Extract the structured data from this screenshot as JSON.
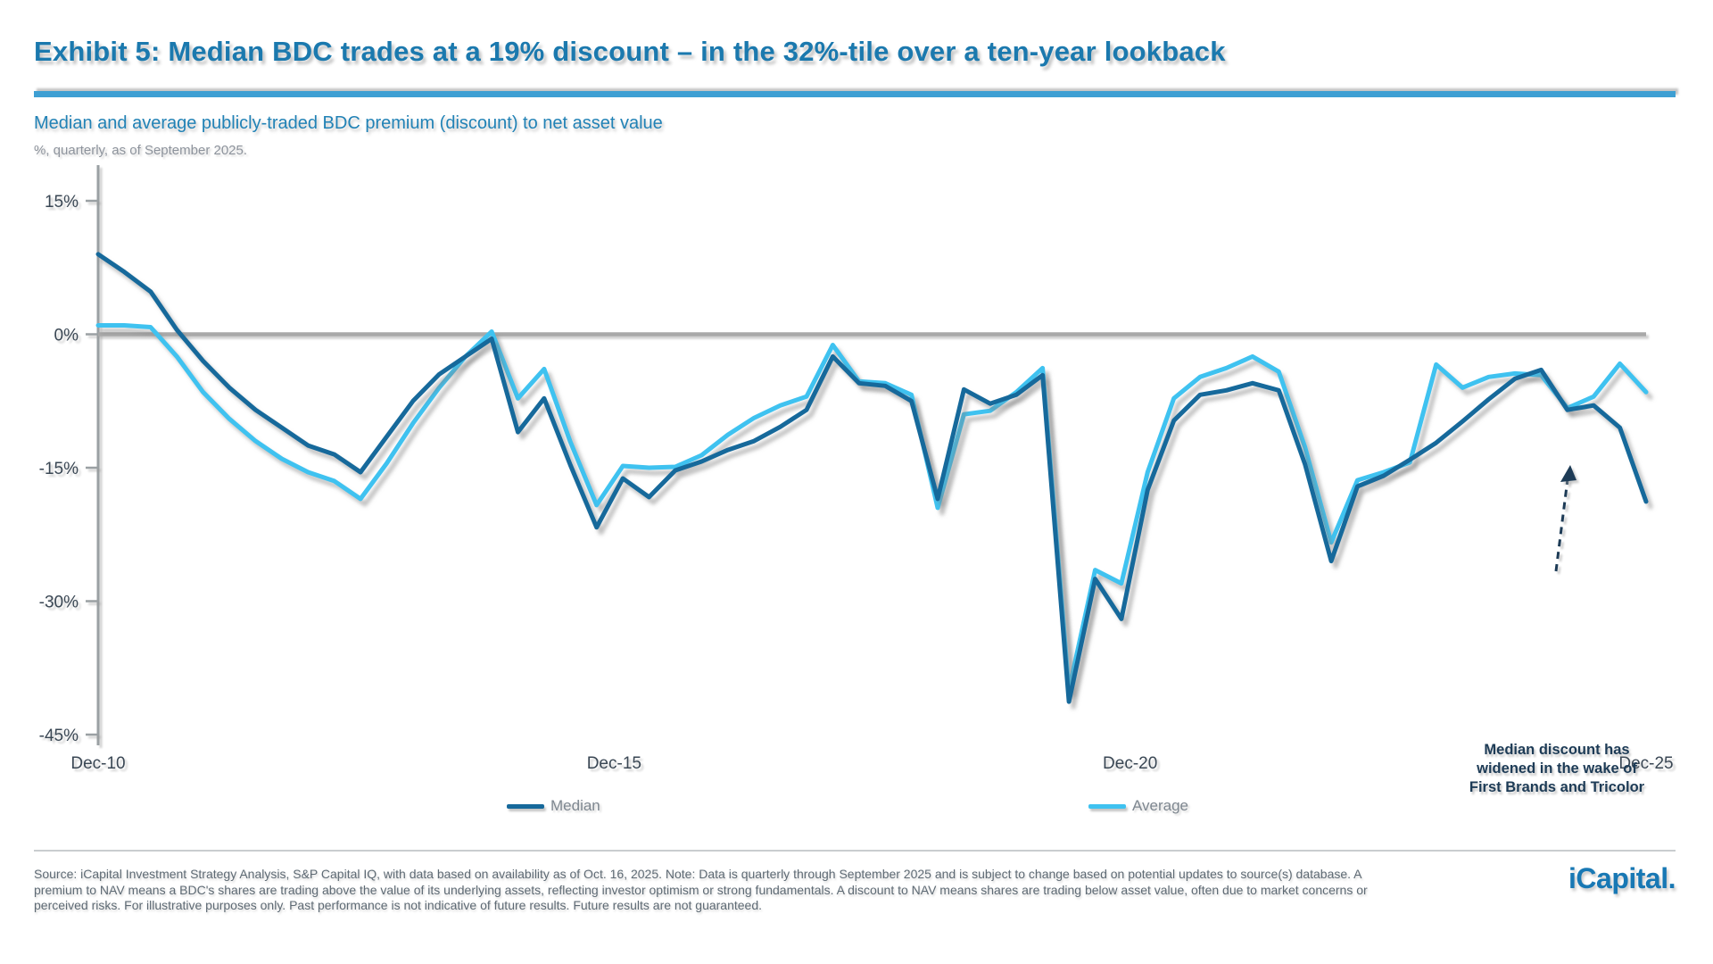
{
  "page": {
    "title": "Exhibit 5: Median BDC trades at a 19% discount – in the 32%-tile over a ten-year lookback",
    "subtitle": "Median and average publicly-traded BDC premium (discount) to net asset value",
    "note": "%, quarterly, as of September 2025."
  },
  "chart_data": {
    "type": "line",
    "title": "Median and average publicly-traded BDC premium (discount) to net asset value",
    "unit": "%",
    "ylim": [
      -45,
      15
    ],
    "y_ticks": [
      {
        "value": 15,
        "label": "15%"
      },
      {
        "value": 0,
        "label": "0%"
      },
      {
        "value": -15,
        "label": "-15%"
      },
      {
        "value": -30,
        "label": "-30%"
      },
      {
        "value": -45,
        "label": "-45%"
      }
    ],
    "x_ticks": [
      "Dec-10",
      "Dec-15",
      "Dec-20",
      "Dec-25"
    ],
    "grid": "zero-line-only",
    "legend_position": "bottom",
    "x": [
      "Dec-10",
      "Mar-11",
      "Jun-11",
      "Sep-11",
      "Dec-11",
      "Mar-12",
      "Jun-12",
      "Sep-12",
      "Dec-12",
      "Mar-13",
      "Jun-13",
      "Sep-13",
      "Dec-13",
      "Mar-14",
      "Jun-14",
      "Sep-14",
      "Dec-14",
      "Mar-15",
      "Jun-15",
      "Sep-15",
      "Dec-15",
      "Mar-16",
      "Jun-16",
      "Sep-16",
      "Dec-16",
      "Mar-17",
      "Jun-17",
      "Sep-17",
      "Dec-17",
      "Mar-18",
      "Jun-18",
      "Sep-18",
      "Dec-18",
      "Mar-19",
      "Jun-19",
      "Sep-19",
      "Dec-19",
      "Mar-20",
      "Jun-20",
      "Sep-20",
      "Dec-20",
      "Mar-21",
      "Jun-21",
      "Sep-21",
      "Dec-21",
      "Mar-22",
      "Jun-22",
      "Sep-22",
      "Dec-22",
      "Mar-23",
      "Jun-23",
      "Sep-23",
      "Dec-23",
      "Mar-24",
      "Jun-24",
      "Sep-24",
      "Dec-24",
      "Mar-25",
      "Jun-25",
      "Sep-25"
    ],
    "series": [
      {
        "name": "Median",
        "color": "#16699b",
        "values": [
          9.0,
          7.0,
          4.8,
          0.5,
          -3.0,
          -6.0,
          -8.5,
          -10.5,
          -12.5,
          -13.5,
          -15.5,
          -11.5,
          -7.5,
          -4.5,
          -2.5,
          -0.5,
          -11.0,
          -7.2,
          -14.7,
          -21.7,
          -16.2,
          -18.3,
          -15.3,
          -14.3,
          -13.0,
          -12.0,
          -10.4,
          -8.5,
          -2.5,
          -5.5,
          -5.8,
          -7.5,
          -18.5,
          -6.2,
          -7.8,
          -6.8,
          -4.6,
          -41.3,
          -27.5,
          -32.0,
          -17.5,
          -9.7,
          -6.8,
          -6.3,
          -5.5,
          -6.3,
          -14.6,
          -25.5,
          -17.1,
          -15.9,
          -14.1,
          -12.2,
          -9.8,
          -7.3,
          -5.0,
          -4.0,
          -8.5,
          -8.0,
          -10.5,
          -18.8
        ]
      },
      {
        "name": "Average",
        "color": "#3fc2f0",
        "values": [
          1.0,
          1.0,
          0.8,
          -2.5,
          -6.5,
          -9.5,
          -12.0,
          -14.0,
          -15.5,
          -16.5,
          -18.5,
          -14.5,
          -10.0,
          -6.0,
          -2.5,
          0.3,
          -7.2,
          -3.9,
          -12.1,
          -19.2,
          -14.8,
          -15.0,
          -14.9,
          -13.6,
          -11.3,
          -9.4,
          -8.0,
          -7.0,
          -1.2,
          -5.3,
          -5.5,
          -6.8,
          -19.5,
          -9.0,
          -8.6,
          -6.5,
          -3.8,
          -40.0,
          -26.5,
          -28.0,
          -15.5,
          -7.2,
          -4.8,
          -3.8,
          -2.5,
          -4.2,
          -12.7,
          -23.4,
          -16.4,
          -15.5,
          -14.4,
          -3.4,
          -6.0,
          -4.8,
          -4.4,
          -4.6,
          -8.3,
          -7.0,
          -3.3,
          -6.5
        ]
      }
    ]
  },
  "annotation": {
    "lines": [
      "Median discount has",
      "widened in the wake of",
      "First Brands and Tricolor"
    ]
  },
  "legend": {
    "median_label": "Median",
    "average_label": "Average"
  },
  "footer": {
    "source": "Source: iCapital Investment Strategy Analysis, S&P Capital IQ, with data based on availability as of Oct. 16, 2025. Note: Data is quarterly through September 2025 and is subject to change based on potential updates to source(s) database. A premium to NAV means a BDC's shares are trading above the value of its underlying assets, reflecting investor optimism or strong fundamentals. A discount to NAV means shares are trading below asset value, often due to market concerns or perceived risks. For illustrative purposes only. Past performance is not indicative of future results. Future results are not guaranteed.",
    "logo": "iCapital."
  },
  "colors": {
    "title": "#1b79ae",
    "subtitle": "#2182b6",
    "title_rule": "#3e9fd3",
    "axis_text": "#3a4754",
    "axis_line": "#9aa0a3",
    "zero_line": "#a9a9a9",
    "median_line": "#16699b",
    "average_line": "#3fc2f0",
    "annotation_text": "#1d3b56",
    "legend_text": "#7e8790",
    "footer_text": "#5e6a74",
    "logo": "#1878b4"
  }
}
